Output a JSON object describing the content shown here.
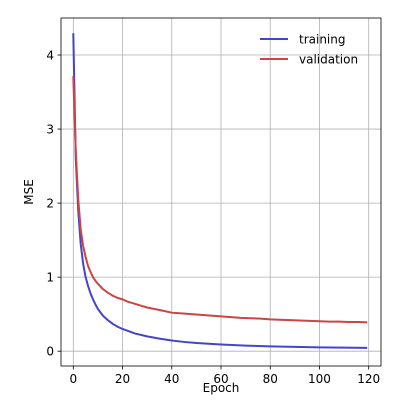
{
  "chart_data": {
    "type": "line",
    "title": "",
    "xlabel": "Epoch",
    "ylabel": "MSE",
    "xlim": [
      -5,
      125
    ],
    "ylim": [
      -0.2,
      4.5
    ],
    "x_ticks": [
      0,
      20,
      40,
      60,
      80,
      100,
      120
    ],
    "y_ticks": [
      0,
      1,
      2,
      3,
      4
    ],
    "grid": true,
    "legend_position": "top-right",
    "series": [
      {
        "name": "training",
        "color": "#4444cc",
        "points": [
          [
            0,
            4.28
          ],
          [
            1,
            2.6
          ],
          [
            2,
            1.9
          ],
          [
            3,
            1.45
          ],
          [
            4,
            1.18
          ],
          [
            5,
            1.0
          ],
          [
            6,
            0.88
          ],
          [
            7,
            0.78
          ],
          [
            8,
            0.7
          ],
          [
            9,
            0.63
          ],
          [
            10,
            0.57
          ],
          [
            12,
            0.48
          ],
          [
            14,
            0.42
          ],
          [
            16,
            0.37
          ],
          [
            18,
            0.33
          ],
          [
            20,
            0.3
          ],
          [
            25,
            0.24
          ],
          [
            30,
            0.2
          ],
          [
            35,
            0.17
          ],
          [
            40,
            0.145
          ],
          [
            45,
            0.125
          ],
          [
            50,
            0.11
          ],
          [
            55,
            0.1
          ],
          [
            60,
            0.09
          ],
          [
            70,
            0.075
          ],
          [
            80,
            0.065
          ],
          [
            90,
            0.058
          ],
          [
            100,
            0.052
          ],
          [
            110,
            0.048
          ],
          [
            119,
            0.045
          ]
        ]
      },
      {
        "name": "validation",
        "color": "#cc4444",
        "points": [
          [
            0,
            3.7
          ],
          [
            1,
            2.7
          ],
          [
            2,
            2.05
          ],
          [
            3,
            1.65
          ],
          [
            4,
            1.42
          ],
          [
            5,
            1.27
          ],
          [
            6,
            1.15
          ],
          [
            7,
            1.07
          ],
          [
            8,
            1.0
          ],
          [
            9,
            0.95
          ],
          [
            10,
            0.91
          ],
          [
            12,
            0.84
          ],
          [
            14,
            0.79
          ],
          [
            16,
            0.75
          ],
          [
            18,
            0.72
          ],
          [
            20,
            0.7
          ],
          [
            22,
            0.67
          ],
          [
            25,
            0.64
          ],
          [
            28,
            0.61
          ],
          [
            30,
            0.59
          ],
          [
            33,
            0.57
          ],
          [
            36,
            0.55
          ],
          [
            40,
            0.52
          ],
          [
            44,
            0.51
          ],
          [
            48,
            0.5
          ],
          [
            52,
            0.49
          ],
          [
            56,
            0.48
          ],
          [
            60,
            0.47
          ],
          [
            64,
            0.46
          ],
          [
            68,
            0.45
          ],
          [
            72,
            0.445
          ],
          [
            76,
            0.44
          ],
          [
            80,
            0.43
          ],
          [
            84,
            0.425
          ],
          [
            88,
            0.42
          ],
          [
            92,
            0.415
          ],
          [
            96,
            0.41
          ],
          [
            100,
            0.405
          ],
          [
            104,
            0.4
          ],
          [
            108,
            0.4
          ],
          [
            112,
            0.395
          ],
          [
            116,
            0.395
          ],
          [
            119,
            0.39
          ]
        ]
      }
    ]
  }
}
